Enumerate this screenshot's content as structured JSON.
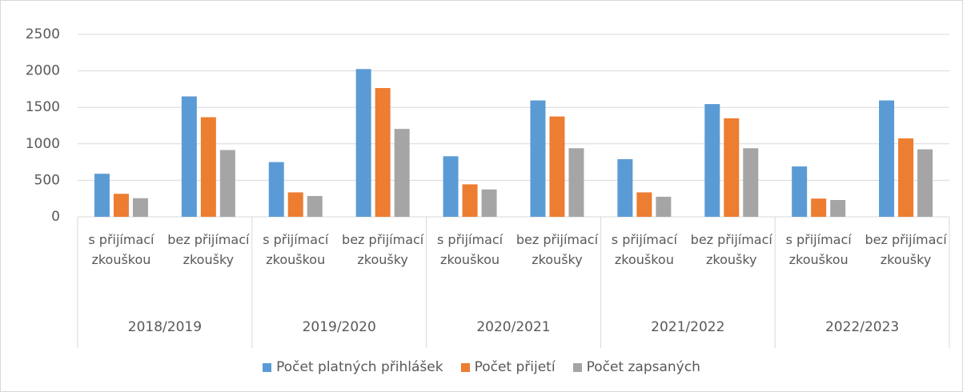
{
  "chart_data": {
    "type": "bar",
    "categories": [
      "s přijímací zkouškou",
      "bez přijímací zkoušky",
      "s přijímací zkouškou",
      "bez přijímací zkoušky",
      "s přijímací zkouškou",
      "bez přijímací zkoušky",
      "s přijímací zkouškou",
      "bez přijímací zkoušky",
      "s přijímací zkouškou",
      "bez přijímací zkoušky"
    ],
    "groups": [
      "2018/2019",
      "2019/2020",
      "2020/2021",
      "2021/2022",
      "2022/2023"
    ],
    "series": [
      {
        "name": "Počet platných přihlášek",
        "color": "#5b9bd5",
        "values": [
          590,
          1650,
          750,
          2025,
          830,
          1595,
          790,
          1545,
          690,
          1595
        ]
      },
      {
        "name": "Počet přijetí",
        "color": "#ed7d31",
        "values": [
          315,
          1365,
          335,
          1765,
          445,
          1375,
          335,
          1350,
          250,
          1075
        ]
      },
      {
        "name": "Počet zapsaných",
        "color": "#a5a5a5",
        "values": [
          255,
          915,
          285,
          1205,
          375,
          940,
          275,
          940,
          230,
          925
        ]
      }
    ],
    "ylim": [
      0,
      2500
    ],
    "yticks": [
      0,
      500,
      1000,
      1500,
      2000,
      2500
    ],
    "grid": true,
    "legend": "bottom"
  }
}
